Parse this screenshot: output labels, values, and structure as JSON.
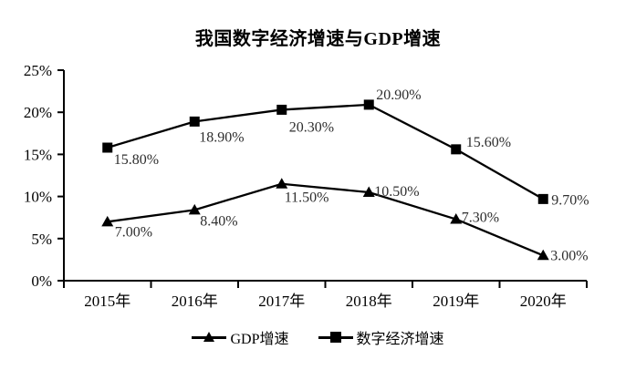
{
  "chart_data": {
    "type": "line",
    "title": "我国数字经济增速与GDP增速",
    "categories": [
      "2015年",
      "2016年",
      "2017年",
      "2018年",
      "2019年",
      "2020年"
    ],
    "series": [
      {
        "name": "GDP增速",
        "marker": "triangle",
        "values": [
          7.0,
          8.4,
          11.5,
          10.5,
          7.3,
          3.0
        ],
        "labels": [
          "7.00%",
          "8.40%",
          "11.50%",
          "10.50%",
          "7.30%",
          "3.00%"
        ],
        "label_offsets": [
          [
            8,
            16
          ],
          [
            6,
            17
          ],
          [
            3,
            20
          ],
          [
            6,
            4
          ],
          [
            6,
            3
          ],
          [
            8,
            5
          ]
        ]
      },
      {
        "name": "数字经济增速",
        "marker": "square",
        "values": [
          15.8,
          18.9,
          20.3,
          20.9,
          15.6,
          9.7
        ],
        "labels": [
          "15.80%",
          "18.90%",
          "20.30%",
          "20.90%",
          "15.60%",
          "9.70%"
        ],
        "label_offsets": [
          [
            7,
            18
          ],
          [
            5,
            22
          ],
          [
            8,
            24
          ],
          [
            8,
            -6
          ],
          [
            11,
            -3
          ],
          [
            9,
            6
          ]
        ]
      }
    ],
    "yticks": [
      "0%",
      "5%",
      "10%",
      "15%",
      "20%",
      "25%"
    ],
    "ytick_values": [
      0,
      5,
      10,
      15,
      20,
      25
    ],
    "ylim": [
      0,
      25
    ],
    "grid": false,
    "legend_position": "bottom",
    "colors": {
      "line": "#000000",
      "axis": "#000000",
      "data_label": "#2e2e2e",
      "background": "#ffffff"
    }
  }
}
